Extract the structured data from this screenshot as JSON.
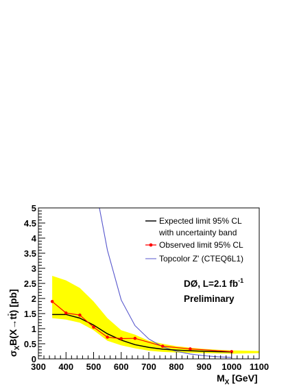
{
  "chart_data": {
    "type": "line",
    "xlabel": {
      "main": "M",
      "sub": "X",
      "unit": " [GeV]"
    },
    "ylabel": {
      "p1": "σ",
      "sub": "X",
      "p2": "B(X→tt)  [pb]"
    },
    "xlim": [
      300,
      1100
    ],
    "ylim": [
      0,
      5
    ],
    "x_ticks": [
      "300",
      "400",
      "500",
      "600",
      "700",
      "800",
      "900",
      "1000",
      "1100"
    ],
    "y_ticks": [
      "0",
      "0.5",
      "1",
      "1.5",
      "2",
      "2.5",
      "3",
      "3.5",
      "4",
      "4.5",
      "5"
    ],
    "grid": false,
    "legend_position": "top-right",
    "series": [
      {
        "name": "Expected limit 95% CL",
        "name_line2": "with uncertainty band",
        "color": "#000000",
        "x": [
          350,
          400,
          450,
          500,
          550,
          600,
          650,
          700,
          750,
          800,
          850,
          900,
          950,
          1000
        ],
        "values": [
          1.47,
          1.47,
          1.35,
          1.12,
          0.83,
          0.62,
          0.47,
          0.38,
          0.32,
          0.29,
          0.27,
          0.25,
          0.24,
          0.23
        ],
        "band_upper": [
          2.75,
          2.6,
          2.35,
          1.9,
          1.35,
          0.95,
          0.8,
          0.6,
          0.5,
          0.42,
          0.37,
          0.33,
          0.3,
          0.28
        ],
        "band_lower": [
          1.35,
          1.3,
          1.2,
          0.95,
          0.6,
          0.45,
          0.35,
          0.27,
          0.23,
          0.21,
          0.2,
          0.19,
          0.18,
          0.17
        ],
        "band_color": "#ffff00"
      },
      {
        "name": "Observed limit 95% CL",
        "color": "#ff0000",
        "x": [
          350,
          400,
          450,
          500,
          550,
          600,
          650,
          750,
          850,
          1000
        ],
        "values": [
          1.9,
          1.52,
          1.45,
          1.05,
          0.72,
          0.67,
          0.68,
          0.42,
          0.33,
          0.24
        ]
      },
      {
        "name": "Topcolor Z'  (CTEQ6L1)",
        "color": "#5555cc",
        "x": [
          521,
          550,
          600,
          650,
          700,
          750,
          800,
          850,
          900,
          950,
          1000
        ],
        "values": [
          5.0,
          3.6,
          1.95,
          1.1,
          0.66,
          0.4,
          0.25,
          0.16,
          0.105,
          0.07,
          0.05
        ]
      }
    ],
    "annotations": {
      "experiment": "DØ, L=2.1 fb",
      "lumi_sup": "-1",
      "status": "Preliminary"
    }
  }
}
